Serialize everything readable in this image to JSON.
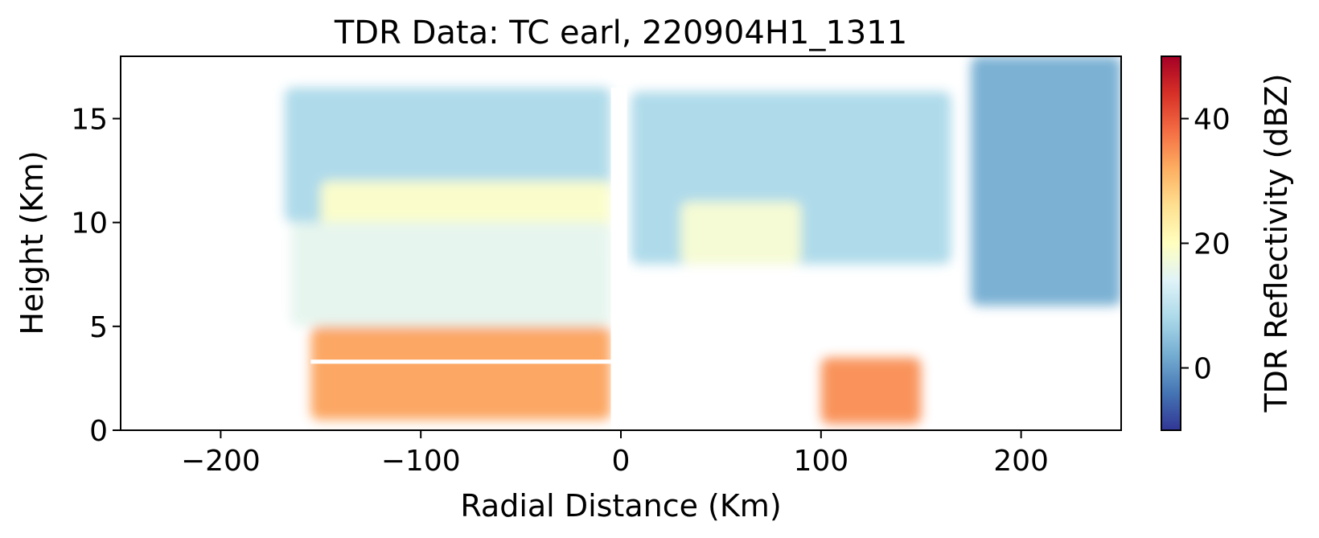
{
  "chart_data": {
    "type": "heatmap",
    "title": "TDR Data: TC earl, 220904H1_1311",
    "xlabel": "Radial Distance (Km)",
    "ylabel": "Height (Km)",
    "xlim": [
      -250,
      250
    ],
    "ylim": [
      0,
      18
    ],
    "xticks": [
      -200,
      -100,
      0,
      100,
      200
    ],
    "xtick_labels": [
      "−200",
      "−100",
      "0",
      "100",
      "200"
    ],
    "yticks": [
      0,
      5,
      10,
      15
    ],
    "ytick_labels": [
      "0",
      "5",
      "10",
      "15"
    ],
    "colorbar": {
      "label": "TDR Reflectivity (dBZ)",
      "range": [
        -10,
        50
      ],
      "ticks": [
        0,
        20,
        40
      ],
      "tick_labels": [
        "0",
        "20",
        "40"
      ],
      "colormap": "RdYlBu_r",
      "stops": [
        "#313695",
        "#4575b4",
        "#74add1",
        "#abd9e9",
        "#e0f3f8",
        "#ffffbf",
        "#fee090",
        "#fdae61",
        "#f46d43",
        "#d73027",
        "#a50026"
      ]
    },
    "grid": false,
    "regions": [
      {
        "region": "left-upper-anvil",
        "x": [
          -168,
          -5
        ],
        "y": [
          10,
          16.5
        ],
        "dbz": 8
      },
      {
        "region": "left-bright-band",
        "x": [
          -150,
          -5
        ],
        "y": [
          8,
          12
        ],
        "dbz": 19
      },
      {
        "region": "left-mid-level",
        "x": [
          -165,
          -5
        ],
        "y": [
          5,
          10
        ],
        "dbz": 15
      },
      {
        "region": "left-low-level-rain",
        "x": [
          -155,
          -5
        ],
        "y": [
          0.5,
          5
        ],
        "dbz": 33
      },
      {
        "region": "right-upper-anvil",
        "x": [
          5,
          165
        ],
        "y": [
          8,
          16.3
        ],
        "dbz": 8
      },
      {
        "region": "right-bright-band",
        "x": [
          30,
          90
        ],
        "y": [
          8,
          11
        ],
        "dbz": 18
      },
      {
        "region": "right-low-level-rain",
        "x": [
          100,
          150
        ],
        "y": [
          0.3,
          3.5
        ],
        "dbz": 35
      },
      {
        "region": "far-right-echoes",
        "x": [
          175,
          250
        ],
        "y": [
          6,
          18
        ],
        "dbz": 2
      }
    ]
  }
}
